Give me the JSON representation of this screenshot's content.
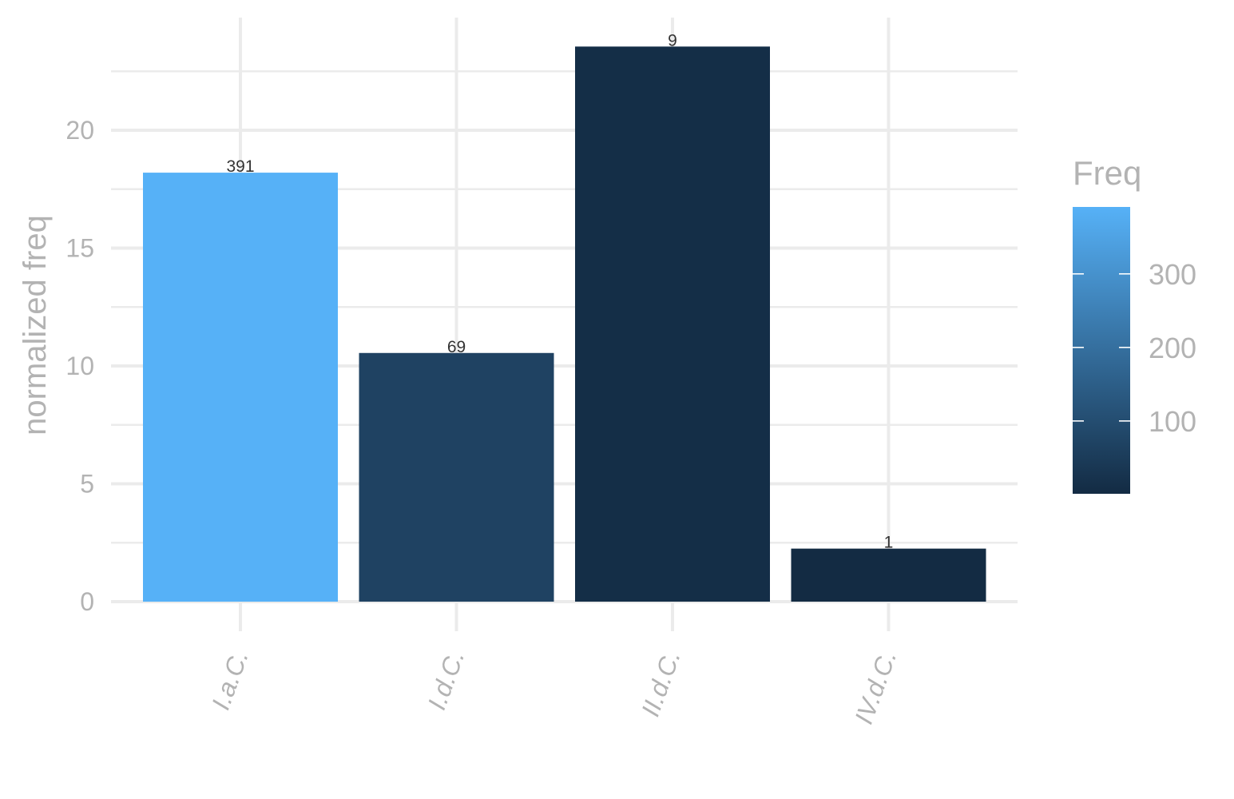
{
  "chart_data": {
    "type": "bar",
    "categories": [
      "I.a.C.",
      "I.d.C.",
      "II.d.C.",
      "IV.d.C."
    ],
    "values": [
      18.2,
      10.55,
      23.55,
      2.25
    ],
    "labels": [
      "391",
      "69",
      "9",
      "1"
    ],
    "freq": [
      391,
      69,
      9,
      1
    ],
    "ylabel": "normalized freq",
    "xlabel": "",
    "ylim": [
      0,
      24
    ],
    "yticks": [
      "0",
      "5",
      "10",
      "15",
      "20"
    ],
    "grid": true,
    "legend": {
      "title": "Freq",
      "position": "right",
      "min": 1,
      "max": 391,
      "ticks": [
        100,
        200,
        300
      ],
      "tick_labels": [
        "100",
        "200",
        "300"
      ],
      "low_color": "#132b43",
      "high_color": "#56b1f7"
    }
  }
}
